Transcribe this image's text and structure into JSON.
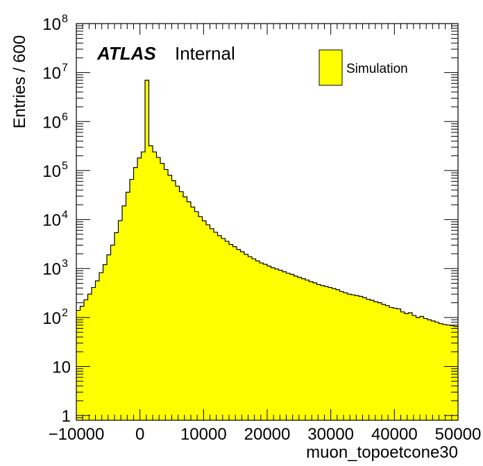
{
  "chart_data": {
    "type": "bar",
    "histogram": true,
    "xlabel": "muon_topoetcone30",
    "ylabel": "Entries / 600",
    "xlim": [
      -10000,
      50000
    ],
    "ylim": [
      0.8,
      100000000
    ],
    "yscale": "log",
    "bin_width": 600,
    "x_ticks": [
      {
        "value": -10000,
        "label": "−10000"
      },
      {
        "value": 0,
        "label": "0"
      },
      {
        "value": 10000,
        "label": "10000"
      },
      {
        "value": 20000,
        "label": "20000"
      },
      {
        "value": 30000,
        "label": "30000"
      },
      {
        "value": 40000,
        "label": "40000"
      },
      {
        "value": 50000,
        "label": "50000"
      }
    ],
    "y_ticks": [
      {
        "value": 1,
        "label": "1",
        "exp": ""
      },
      {
        "value": 10,
        "label": "10",
        "exp": ""
      },
      {
        "value": 100,
        "label": "10",
        "exp": "2"
      },
      {
        "value": 1000,
        "label": "10",
        "exp": "3"
      },
      {
        "value": 10000,
        "label": "10",
        "exp": "4"
      },
      {
        "value": 100000,
        "label": "10",
        "exp": "5"
      },
      {
        "value": 1000000,
        "label": "10",
        "exp": "6"
      },
      {
        "value": 10000000,
        "label": "10",
        "exp": "7"
      },
      {
        "value": 100000000,
        "label": "10",
        "exp": "8"
      }
    ],
    "series": [
      {
        "name": "Simulation",
        "color": "#ffff00",
        "edge_color": "#000000",
        "bin_edges_start": -10000,
        "values": [
          140,
          170,
          230,
          300,
          410,
          560,
          820,
          1200,
          1900,
          3000,
          5400,
          9500,
          19000,
          36000,
          66000,
          115000,
          180000,
          240000,
          7000000,
          320000,
          240000,
          185000,
          140000,
          105000,
          80000,
          62000,
          48000,
          37000,
          29000,
          23000,
          18000,
          14500,
          11500,
          9400,
          7800,
          6500,
          5500,
          4700,
          4100,
          3600,
          3100,
          2800,
          2450,
          2200,
          1950,
          1750,
          1580,
          1430,
          1300,
          1220,
          1120,
          1040,
          980,
          920,
          860,
          800,
          760,
          700,
          660,
          620,
          580,
          540,
          510,
          470,
          450,
          430,
          410,
          390,
          370,
          340,
          320,
          300,
          290,
          280,
          270,
          255,
          235,
          225,
          210,
          200,
          185,
          175,
          160,
          155,
          150,
          130,
          120,
          125,
          110,
          100,
          105,
          95,
          90,
          85,
          80,
          75,
          72,
          70,
          68,
          66
        ]
      }
    ],
    "legend": {
      "position": "top-right",
      "entries": [
        "Simulation"
      ]
    },
    "annotations": {
      "atlas": "ATLAS",
      "status": "Internal"
    }
  }
}
